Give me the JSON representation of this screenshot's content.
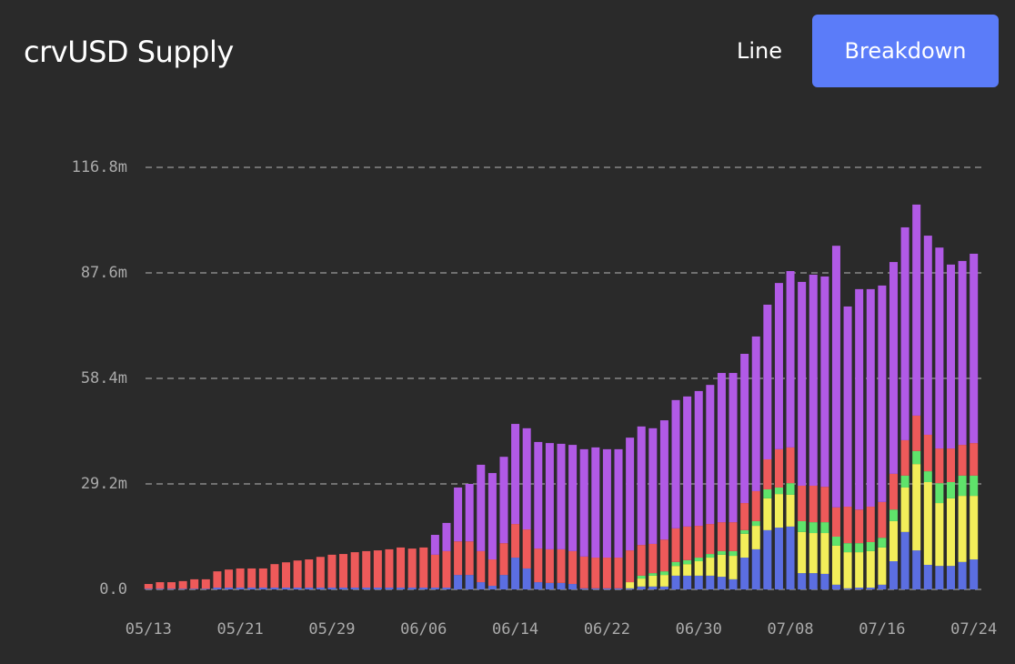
{
  "header": {
    "title": "crvUSD Supply",
    "buttons": [
      "Line",
      "Breakdown"
    ],
    "active": 1
  },
  "chart_data": {
    "type": "stacked_bar",
    "categories": [
      "05/13",
      null,
      null,
      null,
      null,
      null,
      null,
      null,
      "05/21",
      null,
      null,
      null,
      null,
      null,
      null,
      null,
      "05/29",
      null,
      null,
      null,
      null,
      null,
      null,
      null,
      "06/06",
      null,
      null,
      null,
      null,
      null,
      null,
      null,
      "06/14",
      null,
      null,
      null,
      null,
      null,
      null,
      null,
      "06/22",
      null,
      null,
      null,
      null,
      null,
      null,
      null,
      "06/30",
      null,
      null,
      null,
      null,
      null,
      null,
      null,
      "07/08",
      null,
      null,
      null,
      null,
      null,
      null,
      null,
      "07/16",
      null,
      null,
      null,
      null,
      null,
      null,
      null,
      "07/24"
    ],
    "series": [
      {
        "color": "#5b6ee1",
        "values": [
          0.2,
          0.2,
          0.2,
          0.2,
          0.2,
          0.2,
          0.5,
          0.5,
          0.5,
          0.5,
          0.5,
          0.5,
          0.5,
          0.5,
          0.5,
          0.5,
          0.5,
          0.5,
          0.5,
          0.5,
          0.5,
          0.5,
          0.5,
          0.5,
          0.5,
          0.5,
          0.5,
          4.0,
          4.0,
          2.0,
          1.0,
          4.0,
          8.8,
          5.8,
          2.0,
          1.8,
          1.8,
          1.5,
          0.3,
          0.3,
          0.3,
          0.3,
          0.3,
          0.8,
          0.8,
          0.8,
          3.8,
          3.8,
          3.8,
          3.8,
          3.5,
          2.8,
          8.8,
          11.1,
          16.4,
          17.1,
          17.4,
          4.5,
          4.5,
          4.3,
          1.3,
          0.3,
          0.5,
          0.5,
          1.3,
          7.8,
          15.9,
          10.8,
          6.8,
          6.5,
          6.5,
          7.6,
          8.3
        ]
      },
      {
        "color": "#f3ee5a",
        "values": [
          0,
          0,
          0,
          0,
          0,
          0,
          0,
          0,
          0,
          0,
          0,
          0,
          0,
          0,
          0,
          0,
          0,
          0,
          0,
          0,
          0,
          0,
          0,
          0,
          0,
          0,
          0,
          0,
          0,
          0,
          0,
          0,
          0,
          0,
          0,
          0,
          0,
          0,
          0,
          0,
          0,
          0,
          1.7,
          2.2,
          3.0,
          3.2,
          2.7,
          3.2,
          4.0,
          5.0,
          6.1,
          6.5,
          6.6,
          6.5,
          8.8,
          9.3,
          8.8,
          11.4,
          11.1,
          11.3,
          10.8,
          10.0,
          9.8,
          10.1,
          10.3,
          11.1,
          12.3,
          23.9,
          22.9,
          17.4,
          18.7,
          18.3,
          17.6
        ]
      },
      {
        "color": "#5fe36b",
        "values": [
          0,
          0,
          0,
          0,
          0,
          0,
          0,
          0,
          0,
          0,
          0,
          0,
          0,
          0,
          0,
          0,
          0,
          0,
          0,
          0,
          0,
          0,
          0,
          0,
          0,
          0,
          0,
          0,
          0,
          0,
          0,
          0,
          0,
          0,
          0,
          0,
          0,
          0,
          0,
          0,
          0,
          0,
          0,
          0.8,
          0.7,
          1.0,
          1.1,
          1.1,
          1.0,
          1.0,
          1.0,
          1.3,
          1.0,
          1.3,
          2.5,
          1.8,
          3.2,
          3.0,
          3.0,
          3.0,
          2.5,
          2.5,
          2.5,
          2.5,
          2.7,
          3.2,
          3.3,
          3.6,
          3.0,
          5.5,
          4.5,
          5.6,
          5.6
        ]
      },
      {
        "color": "#ee5a5a",
        "values": [
          1.3,
          1.8,
          1.8,
          2.1,
          2.6,
          2.6,
          4.5,
          5.0,
          5.3,
          5.3,
          5.3,
          6.5,
          7.0,
          7.5,
          7.8,
          8.5,
          9.1,
          9.3,
          9.8,
          10.1,
          10.3,
          10.6,
          11.1,
          10.8,
          11.1,
          9.1,
          10.1,
          9.3,
          9.3,
          8.6,
          7.3,
          8.8,
          9.3,
          10.8,
          9.3,
          9.3,
          9.3,
          9.1,
          8.8,
          8.5,
          8.5,
          8.5,
          8.8,
          8.5,
          8.1,
          8.8,
          9.3,
          9.3,
          8.8,
          8.3,
          8.0,
          8.0,
          7.5,
          8.3,
          8.3,
          10.6,
          9.9,
          9.8,
          10.1,
          9.8,
          8.1,
          10.1,
          9.3,
          9.8,
          9.9,
          9.9,
          9.8,
          9.8,
          10.1,
          9.6,
          9.3,
          8.5,
          9.0
        ]
      },
      {
        "color": "#b15ae6",
        "values": [
          0,
          0,
          0,
          0,
          0,
          0,
          0,
          0,
          0,
          0,
          0,
          0,
          0,
          0,
          0,
          0,
          0,
          0,
          0,
          0,
          0,
          0,
          0,
          0,
          0,
          5.5,
          7.8,
          14.9,
          15.9,
          23.9,
          23.9,
          23.9,
          27.7,
          28.0,
          29.5,
          29.4,
          29.2,
          29.4,
          29.7,
          30.5,
          30.0,
          30.0,
          31.2,
          32.8,
          32.0,
          33.0,
          35.5,
          36.0,
          37.3,
          38.5,
          41.3,
          41.3,
          41.3,
          42.8,
          42.8,
          46.0,
          48.8,
          56.4,
          58.4,
          58.2,
          72.4,
          55.4,
          61.0,
          60.2,
          59.9,
          58.6,
          58.9,
          58.4,
          55.1,
          55.6,
          50.9,
          50.9,
          52.4
        ]
      }
    ],
    "ylim": [
      0,
      116.8
    ],
    "yticks": [
      {
        "value": 0,
        "label": "0.0"
      },
      {
        "value": 29.2,
        "label": "29.2m"
      },
      {
        "value": 58.4,
        "label": "58.4m"
      },
      {
        "value": 87.6,
        "label": "87.6m"
      },
      {
        "value": 116.8,
        "label": "116.8m"
      }
    ],
    "grid": true
  }
}
